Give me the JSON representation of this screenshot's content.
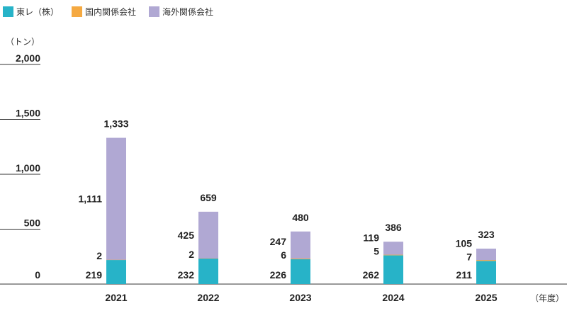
{
  "chart_data": {
    "type": "bar",
    "stacked": true,
    "categories": [
      "2021",
      "2022",
      "2023",
      "2024",
      "2025"
    ],
    "series": [
      {
        "name": "東レ（株）",
        "color": "#27b3c8",
        "values": [
          219,
          232,
          226,
          262,
          211
        ]
      },
      {
        "name": "国内関係会社",
        "color": "#f5a941",
        "values": [
          2,
          2,
          6,
          5,
          7
        ]
      },
      {
        "name": "海外関係会社",
        "color": "#b0a8d3",
        "values": [
          1111,
          425,
          247,
          119,
          105
        ]
      }
    ],
    "totals": [
      "1,333",
      "659",
      "480",
      "386",
      "323"
    ],
    "segment_labels": [
      [
        "219",
        "2",
        "1,111"
      ],
      [
        "232",
        "2",
        "425"
      ],
      [
        "226",
        "6",
        "247"
      ],
      [
        "262",
        "5",
        "119"
      ],
      [
        "211",
        "7",
        "105"
      ]
    ],
    "ylabel": "（トン）",
    "xlabel": "（年度）",
    "ylim": [
      0,
      2000
    ],
    "yticks": [
      0,
      500,
      1000,
      1500,
      2000
    ],
    "ytick_labels": [
      "0",
      "500",
      "1,000",
      "1,500",
      "2,000"
    ],
    "legend_position": "top-left",
    "grid": false
  }
}
